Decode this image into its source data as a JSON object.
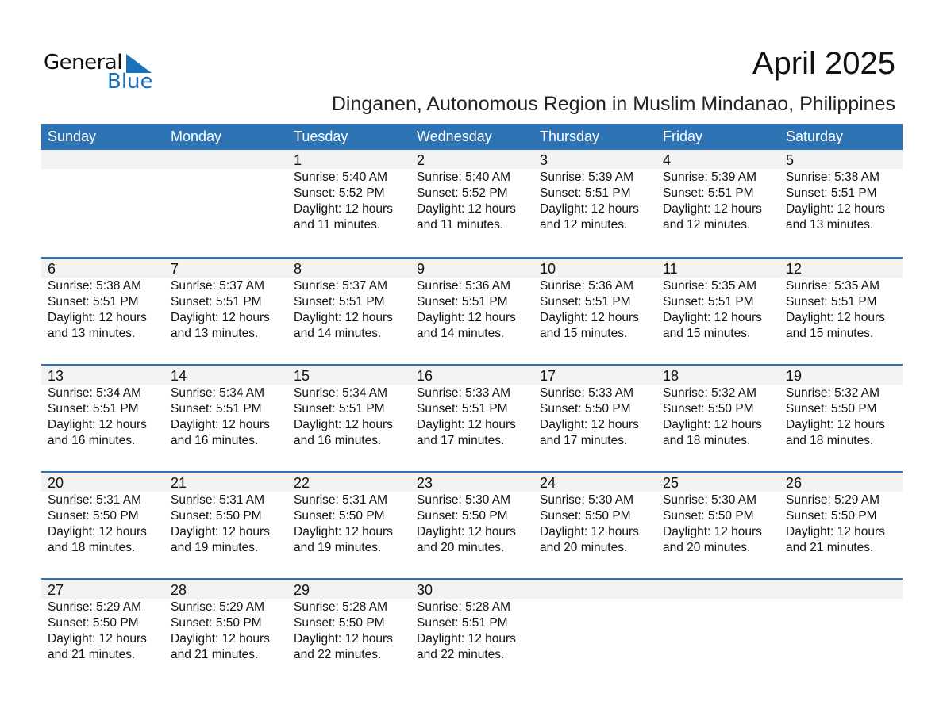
{
  "logo": {
    "text_general": "General",
    "text_blue": "Blue",
    "color": "#1a72bb"
  },
  "title": "April 2025",
  "subtitle": "Dinganen, Autonomous Region in Muslim Mindanao, Philippines",
  "colors": {
    "header_bg": "#2e74b5",
    "day_band": "#f2f2f2"
  },
  "weekdays": [
    "Sunday",
    "Monday",
    "Tuesday",
    "Wednesday",
    "Thursday",
    "Friday",
    "Saturday"
  ],
  "weeks": [
    [
      null,
      null,
      {
        "day": "1",
        "sunrise": "Sunrise: 5:40 AM",
        "sunset": "Sunset: 5:52 PM",
        "daylight": "Daylight: 12 hours",
        "minutes": "and 11 minutes."
      },
      {
        "day": "2",
        "sunrise": "Sunrise: 5:40 AM",
        "sunset": "Sunset: 5:52 PM",
        "daylight": "Daylight: 12 hours",
        "minutes": "and 11 minutes."
      },
      {
        "day": "3",
        "sunrise": "Sunrise: 5:39 AM",
        "sunset": "Sunset: 5:51 PM",
        "daylight": "Daylight: 12 hours",
        "minutes": "and 12 minutes."
      },
      {
        "day": "4",
        "sunrise": "Sunrise: 5:39 AM",
        "sunset": "Sunset: 5:51 PM",
        "daylight": "Daylight: 12 hours",
        "minutes": "and 12 minutes."
      },
      {
        "day": "5",
        "sunrise": "Sunrise: 5:38 AM",
        "sunset": "Sunset: 5:51 PM",
        "daylight": "Daylight: 12 hours",
        "minutes": "and 13 minutes."
      }
    ],
    [
      {
        "day": "6",
        "sunrise": "Sunrise: 5:38 AM",
        "sunset": "Sunset: 5:51 PM",
        "daylight": "Daylight: 12 hours",
        "minutes": "and 13 minutes."
      },
      {
        "day": "7",
        "sunrise": "Sunrise: 5:37 AM",
        "sunset": "Sunset: 5:51 PM",
        "daylight": "Daylight: 12 hours",
        "minutes": "and 13 minutes."
      },
      {
        "day": "8",
        "sunrise": "Sunrise: 5:37 AM",
        "sunset": "Sunset: 5:51 PM",
        "daylight": "Daylight: 12 hours",
        "minutes": "and 14 minutes."
      },
      {
        "day": "9",
        "sunrise": "Sunrise: 5:36 AM",
        "sunset": "Sunset: 5:51 PM",
        "daylight": "Daylight: 12 hours",
        "minutes": "and 14 minutes."
      },
      {
        "day": "10",
        "sunrise": "Sunrise: 5:36 AM",
        "sunset": "Sunset: 5:51 PM",
        "daylight": "Daylight: 12 hours",
        "minutes": "and 15 minutes."
      },
      {
        "day": "11",
        "sunrise": "Sunrise: 5:35 AM",
        "sunset": "Sunset: 5:51 PM",
        "daylight": "Daylight: 12 hours",
        "minutes": "and 15 minutes."
      },
      {
        "day": "12",
        "sunrise": "Sunrise: 5:35 AM",
        "sunset": "Sunset: 5:51 PM",
        "daylight": "Daylight: 12 hours",
        "minutes": "and 15 minutes."
      }
    ],
    [
      {
        "day": "13",
        "sunrise": "Sunrise: 5:34 AM",
        "sunset": "Sunset: 5:51 PM",
        "daylight": "Daylight: 12 hours",
        "minutes": "and 16 minutes."
      },
      {
        "day": "14",
        "sunrise": "Sunrise: 5:34 AM",
        "sunset": "Sunset: 5:51 PM",
        "daylight": "Daylight: 12 hours",
        "minutes": "and 16 minutes."
      },
      {
        "day": "15",
        "sunrise": "Sunrise: 5:34 AM",
        "sunset": "Sunset: 5:51 PM",
        "daylight": "Daylight: 12 hours",
        "minutes": "and 16 minutes."
      },
      {
        "day": "16",
        "sunrise": "Sunrise: 5:33 AM",
        "sunset": "Sunset: 5:51 PM",
        "daylight": "Daylight: 12 hours",
        "minutes": "and 17 minutes."
      },
      {
        "day": "17",
        "sunrise": "Sunrise: 5:33 AM",
        "sunset": "Sunset: 5:50 PM",
        "daylight": "Daylight: 12 hours",
        "minutes": "and 17 minutes."
      },
      {
        "day": "18",
        "sunrise": "Sunrise: 5:32 AM",
        "sunset": "Sunset: 5:50 PM",
        "daylight": "Daylight: 12 hours",
        "minutes": "and 18 minutes."
      },
      {
        "day": "19",
        "sunrise": "Sunrise: 5:32 AM",
        "sunset": "Sunset: 5:50 PM",
        "daylight": "Daylight: 12 hours",
        "minutes": "and 18 minutes."
      }
    ],
    [
      {
        "day": "20",
        "sunrise": "Sunrise: 5:31 AM",
        "sunset": "Sunset: 5:50 PM",
        "daylight": "Daylight: 12 hours",
        "minutes": "and 18 minutes."
      },
      {
        "day": "21",
        "sunrise": "Sunrise: 5:31 AM",
        "sunset": "Sunset: 5:50 PM",
        "daylight": "Daylight: 12 hours",
        "minutes": "and 19 minutes."
      },
      {
        "day": "22",
        "sunrise": "Sunrise: 5:31 AM",
        "sunset": "Sunset: 5:50 PM",
        "daylight": "Daylight: 12 hours",
        "minutes": "and 19 minutes."
      },
      {
        "day": "23",
        "sunrise": "Sunrise: 5:30 AM",
        "sunset": "Sunset: 5:50 PM",
        "daylight": "Daylight: 12 hours",
        "minutes": "and 20 minutes."
      },
      {
        "day": "24",
        "sunrise": "Sunrise: 5:30 AM",
        "sunset": "Sunset: 5:50 PM",
        "daylight": "Daylight: 12 hours",
        "minutes": "and 20 minutes."
      },
      {
        "day": "25",
        "sunrise": "Sunrise: 5:30 AM",
        "sunset": "Sunset: 5:50 PM",
        "daylight": "Daylight: 12 hours",
        "minutes": "and 20 minutes."
      },
      {
        "day": "26",
        "sunrise": "Sunrise: 5:29 AM",
        "sunset": "Sunset: 5:50 PM",
        "daylight": "Daylight: 12 hours",
        "minutes": "and 21 minutes."
      }
    ],
    [
      {
        "day": "27",
        "sunrise": "Sunrise: 5:29 AM",
        "sunset": "Sunset: 5:50 PM",
        "daylight": "Daylight: 12 hours",
        "minutes": "and 21 minutes."
      },
      {
        "day": "28",
        "sunrise": "Sunrise: 5:29 AM",
        "sunset": "Sunset: 5:50 PM",
        "daylight": "Daylight: 12 hours",
        "minutes": "and 21 minutes."
      },
      {
        "day": "29",
        "sunrise": "Sunrise: 5:28 AM",
        "sunset": "Sunset: 5:50 PM",
        "daylight": "Daylight: 12 hours",
        "minutes": "and 22 minutes."
      },
      {
        "day": "30",
        "sunrise": "Sunrise: 5:28 AM",
        "sunset": "Sunset: 5:51 PM",
        "daylight": "Daylight: 12 hours",
        "minutes": "and 22 minutes."
      },
      null,
      null,
      null
    ]
  ]
}
